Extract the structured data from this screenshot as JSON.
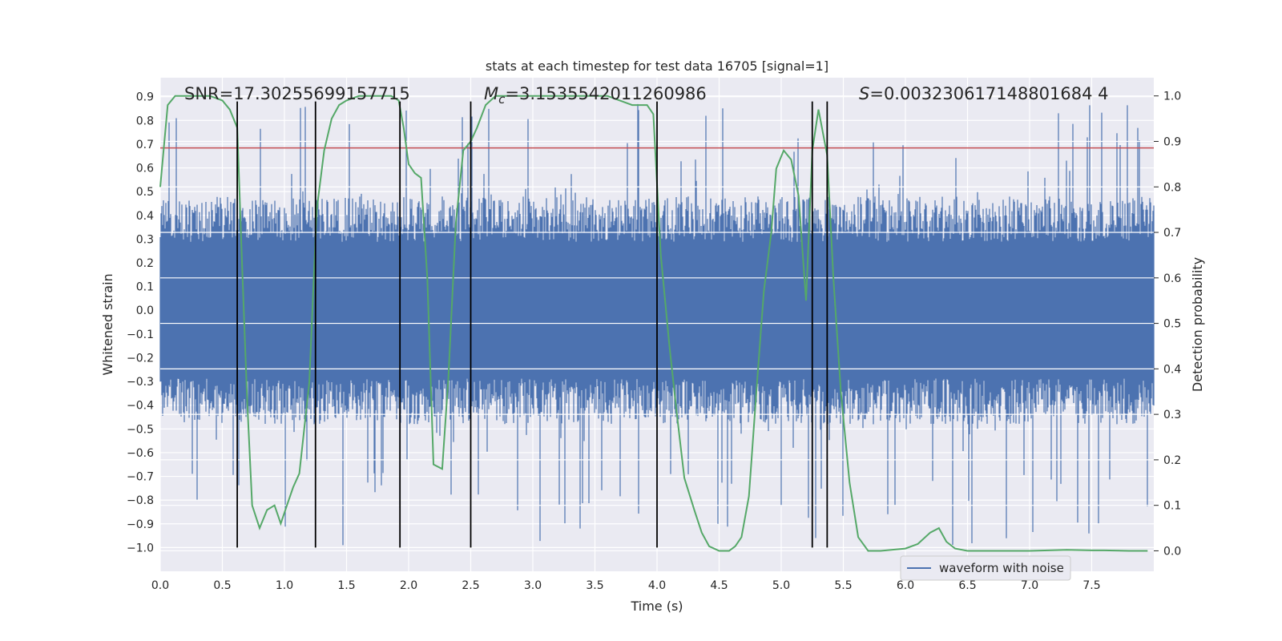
{
  "chart_data": {
    "type": "line",
    "title": "stats at each timestep for test data 16705 [signal=1]",
    "xlabel": "Time (s)",
    "ylabel": "Whitened strain",
    "y2label": "Detection probability",
    "xlim": [
      0,
      8
    ],
    "ylim": [
      -1.1,
      0.98
    ],
    "y2lim": [
      -0.045,
      1.04
    ],
    "xticks": [
      "0.0",
      "0.5",
      "1.0",
      "1.5",
      "2.0",
      "2.5",
      "3.0",
      "3.5",
      "4.0",
      "4.5",
      "5.0",
      "5.5",
      "6.0",
      "6.5",
      "7.0",
      "7.5"
    ],
    "yticks": [
      "−1.0",
      "−0.9",
      "−0.8",
      "−0.7",
      "−0.6",
      "−0.5",
      "−0.4",
      "−0.3",
      "−0.2",
      "−0.1",
      "0.0",
      "0.1",
      "0.2",
      "0.3",
      "0.4",
      "0.5",
      "0.6",
      "0.7",
      "0.8",
      "0.9"
    ],
    "y2ticks": [
      "0.0",
      "0.1",
      "0.2",
      "0.3",
      "0.4",
      "0.5",
      "0.6",
      "0.7",
      "0.8",
      "0.9",
      "1.0"
    ],
    "grid": true,
    "legend_position": "lower-center",
    "annotations": {
      "snr": "SNR=17.30255699157715",
      "mc_symbol": "M",
      "mc_sub": "c",
      "mc_value": "=3.1535542011260986",
      "s_symbol": "S",
      "s_value": "=0.003230617148801684 4"
    },
    "series": [
      {
        "name": "waveform with noise",
        "axis": "left",
        "color": "#4c72b0",
        "noise_envelope": {
          "x_range": [
            0,
            8
          ],
          "typical_amplitude": 0.32,
          "peak_max": 0.87,
          "peak_min": -1.0
        }
      },
      {
        "axis": "right",
        "color": "#55a868",
        "x": [
          0.0,
          0.06,
          0.12,
          0.2,
          0.3,
          0.4,
          0.5,
          0.56,
          0.62,
          0.66,
          0.7,
          0.74,
          0.8,
          0.86,
          0.92,
          0.97,
          1.02,
          1.07,
          1.12,
          1.2,
          1.26,
          1.32,
          1.38,
          1.44,
          1.5,
          1.6,
          1.7,
          1.8,
          1.86,
          1.92,
          1.96,
          2.0,
          2.05,
          2.1,
          2.15,
          2.2,
          2.27,
          2.32,
          2.38,
          2.44,
          2.5,
          2.55,
          2.62,
          2.7,
          2.8,
          3.0,
          3.2,
          3.4,
          3.6,
          3.7,
          3.8,
          3.92,
          3.97,
          4.03,
          4.1,
          4.16,
          4.22,
          4.3,
          4.36,
          4.42,
          4.5,
          4.58,
          4.63,
          4.68,
          4.74,
          4.8,
          4.86,
          4.92,
          4.96,
          5.02,
          5.08,
          5.14,
          5.2,
          5.25,
          5.3,
          5.37,
          5.42,
          5.48,
          5.55,
          5.62,
          5.7,
          5.8,
          6.0,
          6.1,
          6.2,
          6.27,
          6.33,
          6.4,
          6.5,
          6.7,
          7.0,
          7.3,
          7.5,
          7.6,
          7.8,
          7.95
        ],
        "y": [
          0.8,
          0.98,
          1.0,
          1.0,
          1.0,
          1.0,
          0.99,
          0.97,
          0.93,
          0.62,
          0.33,
          0.1,
          0.05,
          0.09,
          0.1,
          0.06,
          0.1,
          0.14,
          0.17,
          0.37,
          0.75,
          0.88,
          0.95,
          0.98,
          0.99,
          1.0,
          1.0,
          1.0,
          1.0,
          0.99,
          0.93,
          0.85,
          0.83,
          0.82,
          0.6,
          0.19,
          0.18,
          0.38,
          0.72,
          0.88,
          0.9,
          0.93,
          0.98,
          1.0,
          1.0,
          1.0,
          1.0,
          1.0,
          1.0,
          0.99,
          0.98,
          0.98,
          0.96,
          0.65,
          0.45,
          0.3,
          0.16,
          0.09,
          0.04,
          0.01,
          0.0,
          0.0,
          0.01,
          0.03,
          0.12,
          0.35,
          0.57,
          0.7,
          0.84,
          0.88,
          0.86,
          0.78,
          0.55,
          0.88,
          0.97,
          0.87,
          0.6,
          0.35,
          0.15,
          0.03,
          0.0,
          0.0,
          0.005,
          0.015,
          0.04,
          0.05,
          0.02,
          0.005,
          0.0,
          0.0,
          0.0,
          0.002,
          0.001,
          0.001,
          0.0,
          0.0
        ]
      }
    ],
    "threshold": {
      "axis": "left",
      "value": 0.684,
      "color": "#c44e52"
    },
    "vertical_lines": [
      0.62,
      1.25,
      1.93,
      2.5,
      4.0,
      5.25,
      5.37
    ],
    "vertical_line_top": 0.88
  }
}
